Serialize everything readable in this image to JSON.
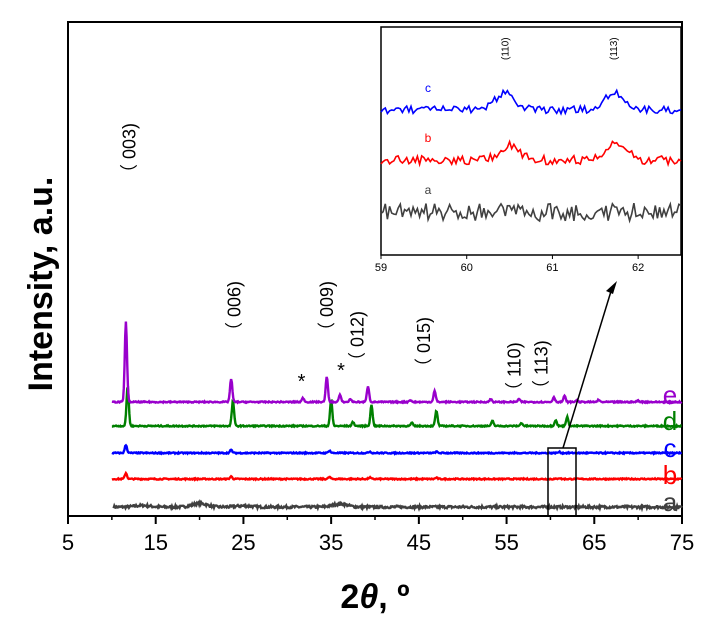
{
  "chart_data": {
    "type": "line",
    "title": "",
    "xlabel_prefix": "2",
    "xlabel_theta": "θ",
    "xlabel_suffix": ", º",
    "ylabel": "Intensity, a.u.",
    "xlim": [
      5,
      75
    ],
    "x_ticks": [
      "5",
      "15",
      "25",
      "35",
      "45",
      "55",
      "65",
      "75"
    ],
    "series": [
      {
        "name": "a",
        "color": "#404040",
        "baseline": 0.0,
        "peaks": [
          [
            13.5,
            0.15
          ],
          [
            20.0,
            0.35
          ],
          [
            25.0,
            0.12
          ],
          [
            36.0,
            0.3
          ]
        ]
      },
      {
        "name": "b",
        "color": "#ff0000",
        "baseline": 1.0,
        "peaks": [
          [
            11.6,
            0.6
          ],
          [
            23.6,
            0.25
          ],
          [
            34.8,
            0.2
          ],
          [
            39.4,
            0.15
          ],
          [
            47.0,
            0.12
          ],
          [
            61.0,
            0.1
          ]
        ]
      },
      {
        "name": "c",
        "color": "#0000ff",
        "baseline": 2.0,
        "peaks": [
          [
            11.6,
            0.8
          ],
          [
            23.6,
            0.3
          ],
          [
            34.8,
            0.25
          ],
          [
            39.4,
            0.15
          ],
          [
            47.0,
            0.12
          ],
          [
            61.0,
            0.1
          ]
        ]
      },
      {
        "name": "d",
        "color": "#008000",
        "baseline": 3.0,
        "peaks": [
          [
            11.8,
            4.0
          ],
          [
            23.8,
            2.5
          ],
          [
            35.0,
            2.6
          ],
          [
            37.5,
            0.4
          ],
          [
            39.6,
            2.1
          ],
          [
            44.2,
            0.3
          ],
          [
            47.0,
            1.5
          ],
          [
            53.4,
            0.5
          ],
          [
            56.7,
            0.3
          ],
          [
            60.6,
            0.6
          ],
          [
            61.9,
            0.9
          ]
        ]
      },
      {
        "name": "e",
        "color": "#9900cc",
        "baseline": 4.0,
        "peaks": [
          [
            11.6,
            8.0
          ],
          [
            23.6,
            2.3
          ],
          [
            31.8,
            0.4
          ],
          [
            34.5,
            2.5
          ],
          [
            36.0,
            0.7
          ],
          [
            37.2,
            0.3
          ],
          [
            39.2,
            1.6
          ],
          [
            44.0,
            0.2
          ],
          [
            46.8,
            1.1
          ],
          [
            53.2,
            0.3
          ],
          [
            56.4,
            0.3
          ],
          [
            60.4,
            0.5
          ],
          [
            61.6,
            0.6
          ],
          [
            63.0,
            0.2
          ],
          [
            65.5,
            0.2
          ],
          [
            70.0,
            0.15
          ]
        ]
      }
    ],
    "peak_labels": [
      {
        "x": 12.0,
        "text": "（ 003)"
      },
      {
        "x": 24.0,
        "text": "（ 006)"
      },
      {
        "x": 34.5,
        "text": "（ 009)"
      },
      {
        "x": 38.0,
        "text": "（ 012)"
      },
      {
        "x": 45.6,
        "text": "（ 015)"
      },
      {
        "x": 55.9,
        "text": "（ 110)"
      },
      {
        "x": 59.0,
        "text": "（ 113)"
      }
    ],
    "stars": [
      {
        "x": 31.4,
        "text": "*"
      },
      {
        "x": 35.9,
        "text": "*"
      }
    ],
    "inset": {
      "xlim": [
        59,
        62.5
      ],
      "x_ticks": [
        "59",
        "60",
        "61",
        "62"
      ],
      "peak_labels": [
        {
          "x": 60.45,
          "text": "(110)"
        },
        {
          "x": 61.72,
          "text": "(113)"
        }
      ],
      "series": [
        {
          "name": "c",
          "color": "#0000ff",
          "peaks": [
            [
              60.45,
              0.45
            ],
            [
              61.72,
              0.45
            ]
          ]
        },
        {
          "name": "b",
          "color": "#ff0000",
          "peaks": [
            [
              60.5,
              0.35
            ],
            [
              61.75,
              0.4
            ]
          ]
        },
        {
          "name": "a",
          "color": "#404040",
          "peaks": []
        }
      ]
    }
  }
}
